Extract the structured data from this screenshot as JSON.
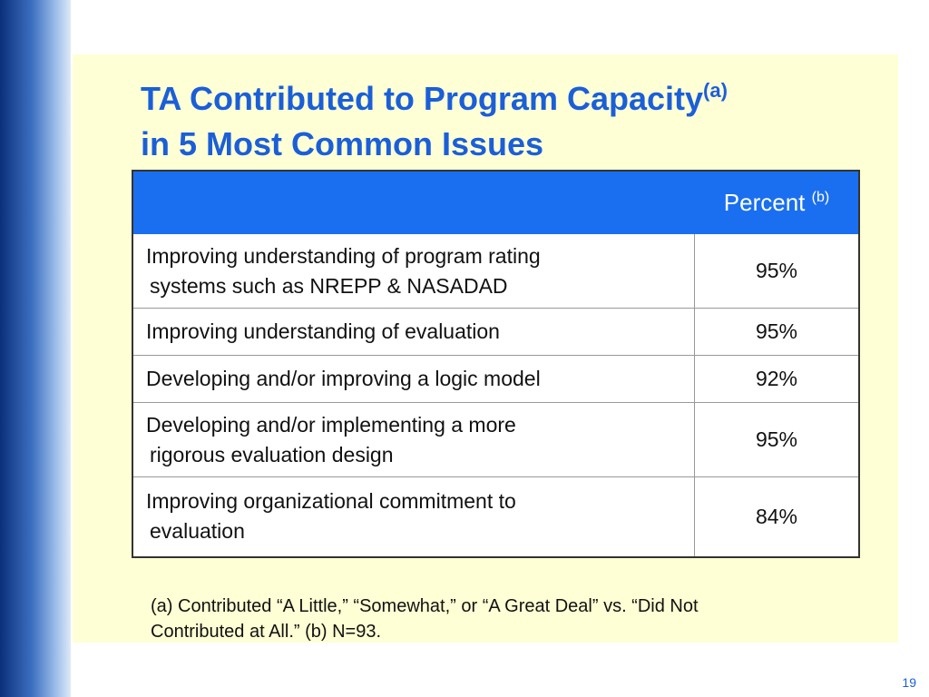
{
  "title": {
    "line1": "TA Contributed to Program Capacity",
    "sup": "(a)",
    "line2": "in 5 Most Common Issues"
  },
  "table": {
    "header": {
      "label": "Percent",
      "sup": "(b)"
    },
    "rows": [
      [
        [
          "Improving understanding of  program rating",
          "systems such as NREPP & NASADAD"
        ],
        "95%"
      ],
      [
        [
          "Improving understanding of evaluation"
        ],
        "95%"
      ],
      [
        [
          "Developing and/or improving a logic model"
        ],
        "92%"
      ],
      [
        [
          "Developing and/or implementing a more",
          "rigorous evaluation design"
        ],
        "95%"
      ],
      [
        [
          "Improving organizational commitment to",
          "evaluation"
        ],
        "84%"
      ]
    ]
  },
  "footnote": [
    "(a) Contributed “A Little,” “Somewhat,” or “A Great Deal” vs. “Did Not",
    "Contributed at All.”  (b)  N=93."
  ],
  "page_number": "19"
}
